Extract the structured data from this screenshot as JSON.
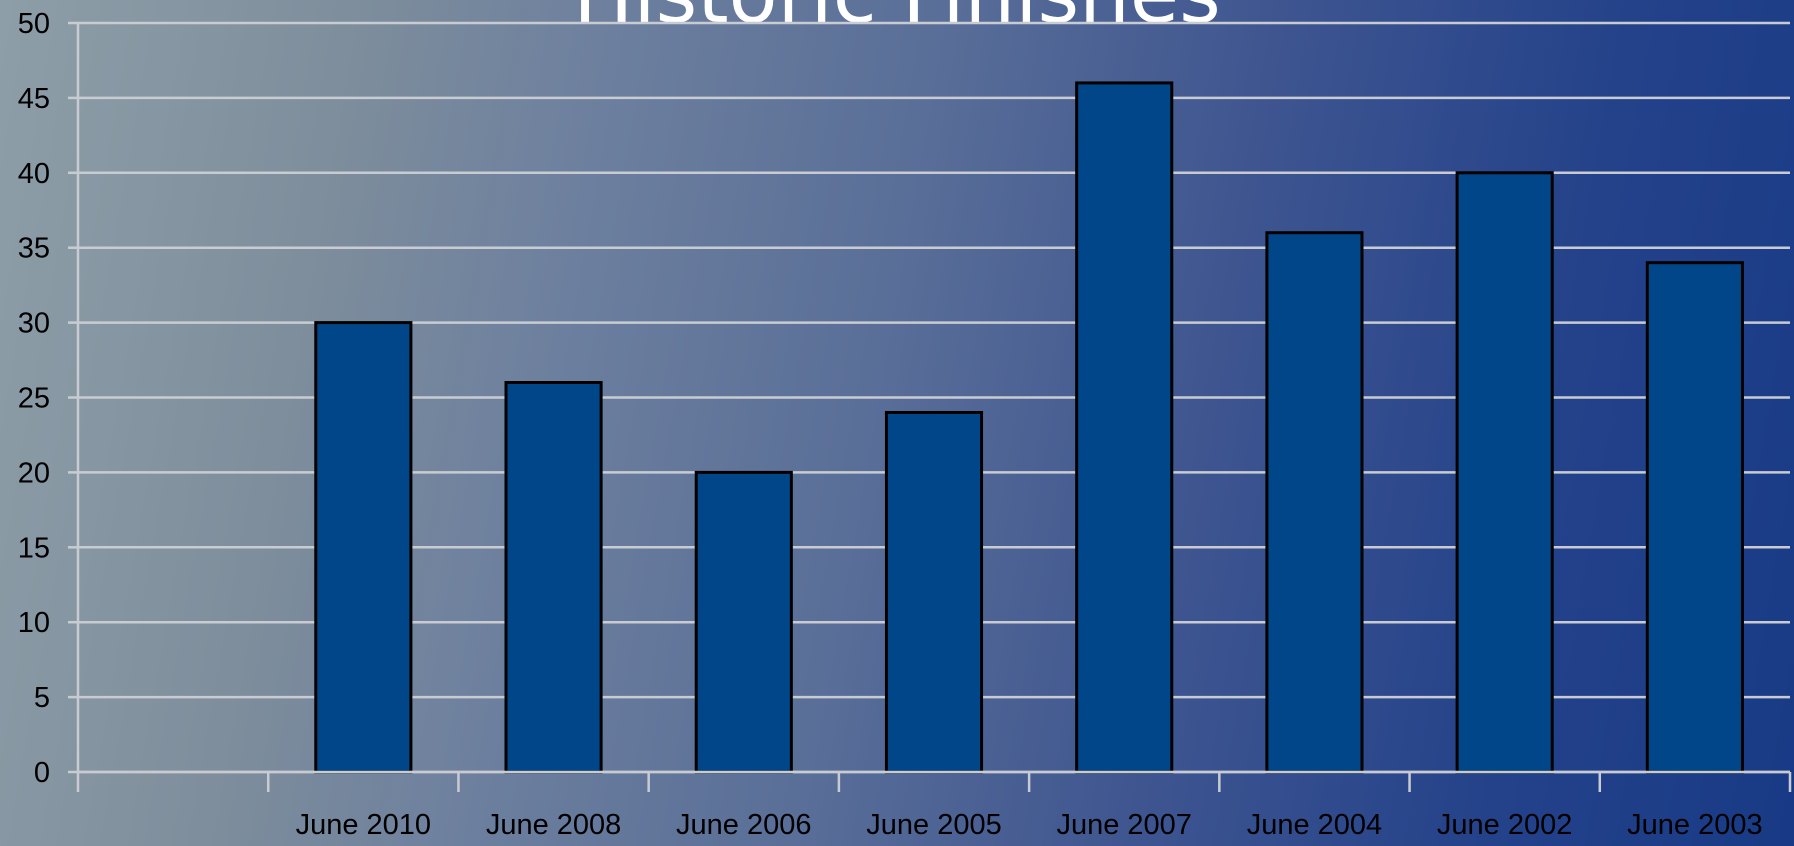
{
  "chart_data": {
    "type": "bar",
    "title": "Historic Finishes",
    "xlabel": "",
    "ylabel": "",
    "categories": [
      "",
      "June 2010",
      "June 2008",
      "June 2006",
      "June 2005",
      "June 2007",
      "June 2004",
      "June 2002",
      "June 2003"
    ],
    "values": [
      null,
      30,
      26,
      20,
      24,
      46,
      36,
      40,
      34
    ],
    "ylim": [
      0,
      50
    ],
    "yticks": [
      0,
      5,
      10,
      15,
      20,
      25,
      30,
      35,
      40,
      45,
      50
    ],
    "grid": true,
    "legend": "none",
    "bar_color": "#02468a",
    "bar_edge_color": "#000000",
    "grid_color": "#c8ccd2"
  }
}
